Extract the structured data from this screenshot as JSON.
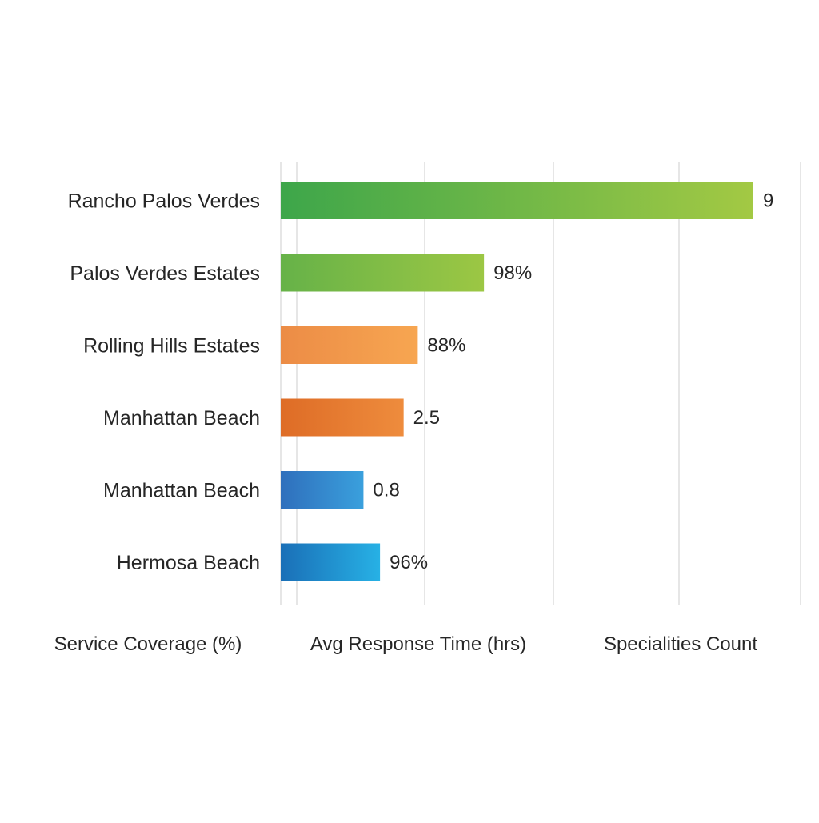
{
  "chart_data": {
    "type": "bar",
    "orientation": "horizontal",
    "categories": [
      "Rancho Palos Verdes",
      "Palos Verdes Estates",
      "Rolling Hills Estates",
      "Manhattan Beach",
      "Manhattan Beach",
      "Hermosa Beach"
    ],
    "value_labels": [
      "9",
      "98%",
      "88%",
      "2.5",
      "0.8",
      "96%"
    ],
    "bar_fraction": [
      1.0,
      0.43,
      0.29,
      0.26,
      0.175,
      0.21
    ],
    "bar_colors": [
      [
        "#3da64a",
        "#a3c944"
      ],
      [
        "#66b248",
        "#9cc744"
      ],
      [
        "#ec8c46",
        "#f7a651"
      ],
      [
        "#de6c26",
        "#ee8c3d"
      ],
      [
        "#2f6fbc",
        "#3aa0dd"
      ],
      [
        "#1a6fb7",
        "#27b1e5"
      ]
    ],
    "footer_labels": [
      "Service Coverage (%)",
      "Avg Response Time (hrs)",
      "Specialities Count"
    ],
    "grid": true,
    "legend": "none"
  }
}
